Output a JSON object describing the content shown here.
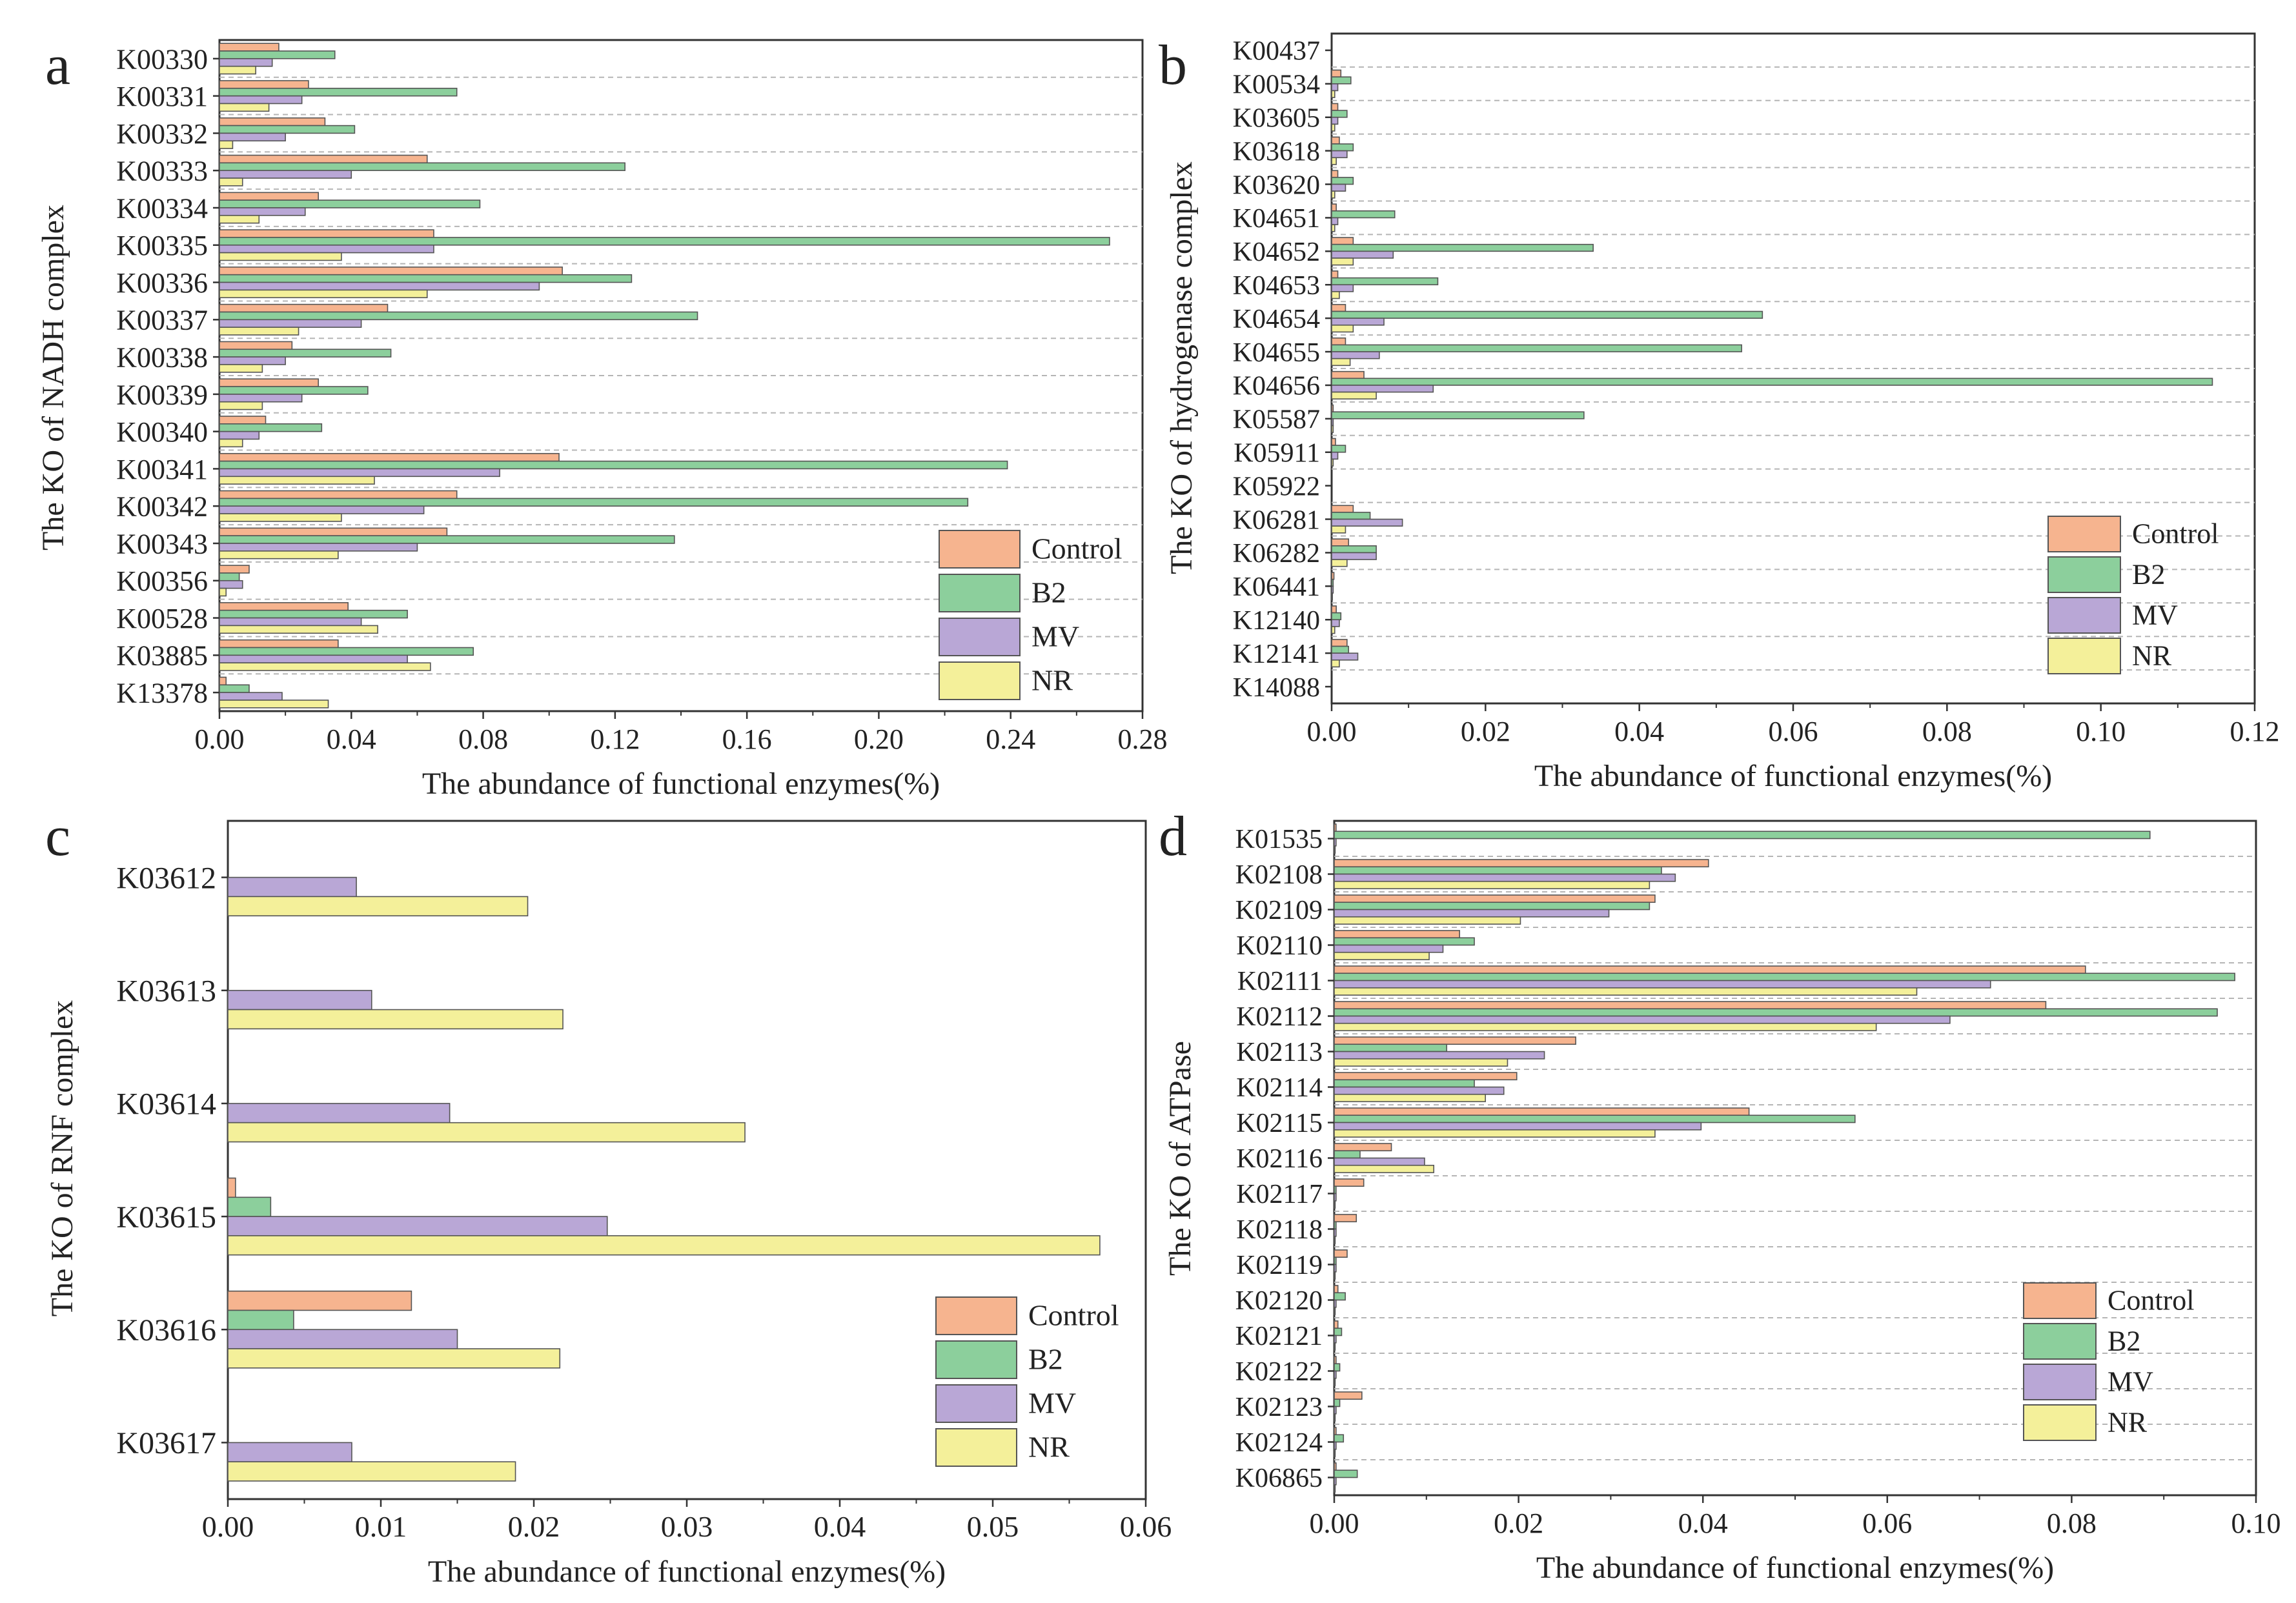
{
  "colors": {
    "Control": "#f6b48f",
    "B2": "#8ccf9c",
    "MV": "#b9a7d6",
    "NR": "#f4f09a",
    "stroke": "#555555",
    "grid": "#b5b5b5"
  },
  "chart_data": [
    {
      "id": "a",
      "type": "bar",
      "orientation": "horizontal",
      "panel_label": "a",
      "ylabel": "The KO of NADH complex",
      "xlabel": "The abundance of functional enzymes(%)",
      "xlim": [
        0,
        0.28
      ],
      "xticks": [
        "0.00",
        "0.04",
        "0.08",
        "0.12",
        "0.16",
        "0.20",
        "0.24",
        "0.28"
      ],
      "legend_position": "bottom-right",
      "categories": [
        "K00330",
        "K00331",
        "K00332",
        "K00333",
        "K00334",
        "K00335",
        "K00336",
        "K00337",
        "K00338",
        "K00339",
        "K00340",
        "K00341",
        "K00342",
        "K00343",
        "K00356",
        "K00528",
        "K03885",
        "K13378"
      ],
      "series": [
        {
          "name": "Control",
          "values": [
            0.018,
            0.027,
            0.032,
            0.063,
            0.03,
            0.065,
            0.104,
            0.051,
            0.022,
            0.03,
            0.014,
            0.103,
            0.072,
            0.069,
            0.009,
            0.039,
            0.036,
            0.002
          ]
        },
        {
          "name": "B2",
          "values": [
            0.035,
            0.072,
            0.041,
            0.123,
            0.079,
            0.27,
            0.125,
            0.145,
            0.052,
            0.045,
            0.031,
            0.239,
            0.227,
            0.138,
            0.006,
            0.057,
            0.077,
            0.009
          ]
        },
        {
          "name": "MV",
          "values": [
            0.016,
            0.025,
            0.02,
            0.04,
            0.026,
            0.065,
            0.097,
            0.043,
            0.02,
            0.025,
            0.012,
            0.085,
            0.062,
            0.06,
            0.007,
            0.043,
            0.057,
            0.019
          ]
        },
        {
          "name": "NR",
          "values": [
            0.011,
            0.015,
            0.004,
            0.007,
            0.012,
            0.037,
            0.063,
            0.024,
            0.013,
            0.013,
            0.007,
            0.047,
            0.037,
            0.036,
            0.002,
            0.048,
            0.064,
            0.033
          ]
        }
      ]
    },
    {
      "id": "b",
      "type": "bar",
      "orientation": "horizontal",
      "panel_label": "b",
      "ylabel": "The KO of hydrogenase complex",
      "xlabel": "The abundance of functional enzymes(%)",
      "xlim": [
        0,
        0.12
      ],
      "xticks": [
        "0.00",
        "0.02",
        "0.04",
        "0.06",
        "0.08",
        "0.10",
        "0.12"
      ],
      "legend_position": "bottom-right",
      "categories": [
        "K00437",
        "K00534",
        "K03605",
        "K03618",
        "K03620",
        "K04651",
        "K04652",
        "K04653",
        "K04654",
        "K04655",
        "K04656",
        "K05587",
        "K05911",
        "K05922",
        "K06281",
        "K06282",
        "K06441",
        "K12140",
        "K12141",
        "K14088"
      ],
      "series": [
        {
          "name": "Control",
          "values": [
            0.0,
            0.0012,
            0.0008,
            0.001,
            0.0008,
            0.0006,
            0.0028,
            0.0008,
            0.0018,
            0.0018,
            0.0042,
            0.0002,
            0.0005,
            0.0,
            0.0028,
            0.0022,
            0.0003,
            0.0006,
            0.002,
            0.0
          ]
        },
        {
          "name": "B2",
          "values": [
            0.0,
            0.0025,
            0.002,
            0.0028,
            0.0028,
            0.0082,
            0.034,
            0.0138,
            0.056,
            0.0533,
            0.1145,
            0.0328,
            0.0018,
            0.0,
            0.005,
            0.0058,
            0.0002,
            0.0012,
            0.0022,
            0.0
          ]
        },
        {
          "name": "MV",
          "values": [
            0.0,
            0.0008,
            0.0008,
            0.002,
            0.0018,
            0.0008,
            0.008,
            0.0028,
            0.0068,
            0.0062,
            0.0132,
            0.0002,
            0.0008,
            0.0,
            0.0092,
            0.0058,
            0.0002,
            0.001,
            0.0034,
            0.0
          ]
        },
        {
          "name": "NR",
          "values": [
            0.0,
            0.0004,
            0.0004,
            0.0006,
            0.0004,
            0.0004,
            0.0028,
            0.001,
            0.0028,
            0.0024,
            0.0058,
            0.0002,
            0.0002,
            0.0,
            0.0018,
            0.002,
            0.0001,
            0.0004,
            0.001,
            0.0
          ]
        }
      ]
    },
    {
      "id": "c",
      "type": "bar",
      "orientation": "horizontal",
      "panel_label": "c",
      "ylabel": "The KO of RNF complex",
      "xlabel": "The abundance of functional enzymes(%)",
      "xlim": [
        0,
        0.06
      ],
      "xticks": [
        "0.00",
        "0.01",
        "0.02",
        "0.03",
        "0.04",
        "0.05",
        "0.06"
      ],
      "legend_position": "bottom-right",
      "categories": [
        "K03612",
        "K03613",
        "K03614",
        "K03615",
        "K03616",
        "K03617"
      ],
      "series": [
        {
          "name": "Control",
          "values": [
            0.0,
            0.0,
            0.0,
            0.0005,
            0.012,
            0.0
          ]
        },
        {
          "name": "B2",
          "values": [
            0.0,
            0.0,
            0.0,
            0.0028,
            0.0043,
            0.0
          ]
        },
        {
          "name": "MV",
          "values": [
            0.0084,
            0.0094,
            0.0145,
            0.0248,
            0.015,
            0.0081
          ]
        },
        {
          "name": "NR",
          "values": [
            0.0196,
            0.0219,
            0.0338,
            0.057,
            0.0217,
            0.0188
          ]
        }
      ]
    },
    {
      "id": "d",
      "type": "bar",
      "orientation": "horizontal",
      "panel_label": "d",
      "ylabel": "The KO of ATPase",
      "xlabel": "The abundance of functional enzymes(%)",
      "xlim": [
        0,
        0.1
      ],
      "xticks": [
        "0.00",
        "0.02",
        "0.04",
        "0.06",
        "0.08",
        "0.10"
      ],
      "legend_position": "bottom-right",
      "categories": [
        "K01535",
        "K02108",
        "K02109",
        "K02110",
        "K02111",
        "K02112",
        "K02113",
        "K02114",
        "K02115",
        "K02116",
        "K02117",
        "K02118",
        "K02119",
        "K02120",
        "K02121",
        "K02122",
        "K02123",
        "K02124",
        "K06865"
      ],
      "series": [
        {
          "name": "Control",
          "values": [
            0.0002,
            0.0406,
            0.0348,
            0.0136,
            0.0815,
            0.0772,
            0.0262,
            0.0198,
            0.045,
            0.0062,
            0.0032,
            0.0024,
            0.0014,
            0.0004,
            0.0004,
            0.0002,
            0.003,
            0.0002,
            0.0002
          ]
        },
        {
          "name": "B2",
          "values": [
            0.0885,
            0.0355,
            0.0342,
            0.0152,
            0.0977,
            0.0958,
            0.0122,
            0.0152,
            0.0565,
            0.0028,
            0.0002,
            0.0002,
            0.0002,
            0.0012,
            0.0008,
            0.0006,
            0.0006,
            0.001,
            0.0025
          ]
        },
        {
          "name": "MV",
          "values": [
            0.0002,
            0.037,
            0.0298,
            0.0118,
            0.0712,
            0.0668,
            0.0228,
            0.0184,
            0.0398,
            0.0098,
            0.0002,
            0.0002,
            0.0002,
            0.0002,
            0.0002,
            0.0002,
            0.0002,
            0.0002,
            0.0002
          ]
        },
        {
          "name": "NR",
          "values": [
            0.0001,
            0.0342,
            0.0202,
            0.0103,
            0.0632,
            0.0588,
            0.0188,
            0.0164,
            0.0348,
            0.0108,
            0.0001,
            0.0001,
            0.0001,
            0.0001,
            0.0001,
            0.0001,
            0.0001,
            0.0001,
            0.0001
          ]
        }
      ]
    }
  ]
}
